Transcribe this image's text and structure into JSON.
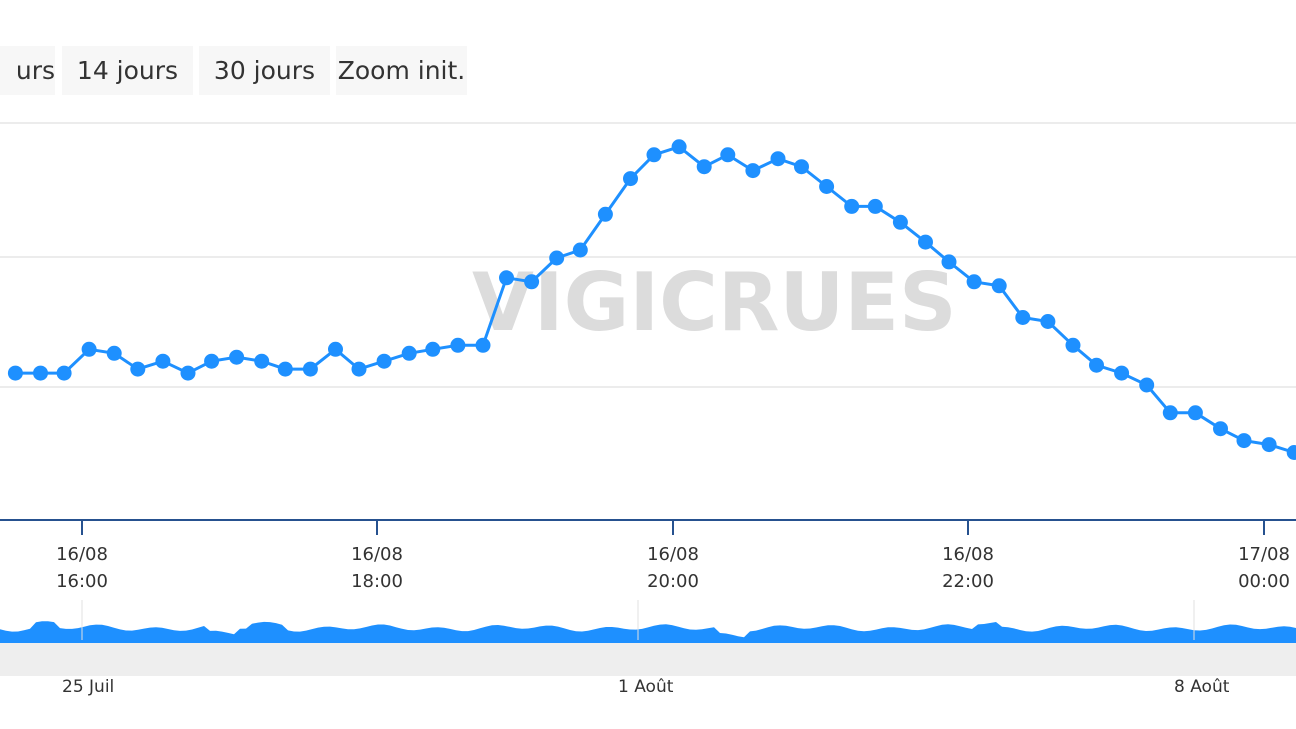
{
  "range_selector": {
    "buttons": [
      "urs",
      "14 jours",
      "30 jours",
      "Zoom init."
    ]
  },
  "watermark": "VIGICRUES",
  "colors": {
    "series": "#1e90ff",
    "axis": "#26518f",
    "grid": "#e6e6e6",
    "navigator_band": "#eeeeee"
  },
  "chart_data": {
    "type": "line",
    "title": "",
    "xlabel": "",
    "ylabel": "",
    "grid": true,
    "legend": "none",
    "x_ticks": [
      {
        "label": [
          "16/08",
          "16:00"
        ]
      },
      {
        "label": [
          "16/08",
          "18:00"
        ]
      },
      {
        "label": [
          "16/08",
          "20:00"
        ]
      },
      {
        "label": [
          "16/08",
          "22:00"
        ]
      },
      {
        "label": [
          "17/08",
          "00:00"
        ]
      }
    ],
    "x_range_hours": [
      14.45,
      24.2
    ],
    "y_range_relative": [
      0,
      1
    ],
    "series": [
      {
        "points": [
          [
            14.5,
            0.37
          ],
          [
            14.67,
            0.37
          ],
          [
            14.83,
            0.37
          ],
          [
            15,
            0.43
          ],
          [
            15.17,
            0.42
          ],
          [
            15.33,
            0.38
          ],
          [
            15.5,
            0.4
          ],
          [
            15.67,
            0.37
          ],
          [
            15.83,
            0.4
          ],
          [
            16,
            0.41
          ],
          [
            16.17,
            0.4
          ],
          [
            16.33,
            0.38
          ],
          [
            16.5,
            0.38
          ],
          [
            16.67,
            0.43
          ],
          [
            16.83,
            0.38
          ],
          [
            17,
            0.4
          ],
          [
            17.17,
            0.42
          ],
          [
            17.33,
            0.43
          ],
          [
            17.5,
            0.44
          ],
          [
            17.67,
            0.44
          ],
          [
            17.83,
            0.61
          ],
          [
            18,
            0.6
          ],
          [
            18.17,
            0.66
          ],
          [
            18.33,
            0.68
          ],
          [
            18.5,
            0.77
          ],
          [
            18.67,
            0.86
          ],
          [
            18.83,
            0.92
          ],
          [
            19,
            0.94
          ],
          [
            19.17,
            0.89
          ],
          [
            19.33,
            0.92
          ],
          [
            19.5,
            0.88
          ],
          [
            19.67,
            0.91
          ],
          [
            19.83,
            0.89
          ],
          [
            20,
            0.84
          ],
          [
            20.17,
            0.79
          ],
          [
            20.33,
            0.79
          ],
          [
            20.5,
            0.75
          ],
          [
            20.67,
            0.7
          ],
          [
            20.83,
            0.65
          ],
          [
            21,
            0.6
          ],
          [
            21.17,
            0.59
          ],
          [
            21.33,
            0.51
          ],
          [
            21.5,
            0.5
          ],
          [
            21.67,
            0.44
          ],
          [
            21.83,
            0.39
          ],
          [
            22,
            0.37
          ],
          [
            22.17,
            0.34
          ],
          [
            22.33,
            0.27
          ],
          [
            22.5,
            0.27
          ],
          [
            22.67,
            0.23
          ],
          [
            22.83,
            0.2
          ],
          [
            23,
            0.19
          ],
          [
            23.17,
            0.17
          ]
        ]
      }
    ],
    "navigator": {
      "labels": [
        "25 Juil",
        "1 Août",
        "8 Août"
      ]
    }
  }
}
